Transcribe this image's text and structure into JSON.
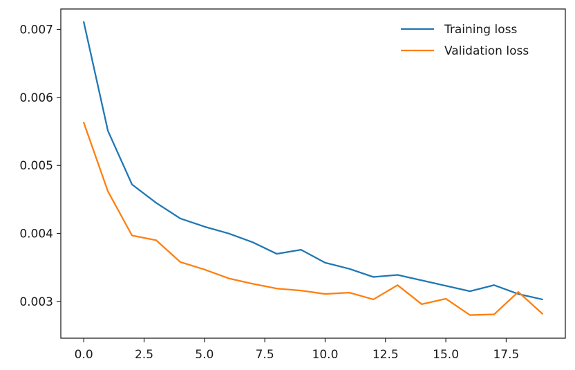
{
  "chart_data": {
    "type": "line",
    "title": "",
    "xlabel": "",
    "ylabel": "",
    "xlim": [
      -0.95,
      19.95
    ],
    "ylim": [
      0.00246,
      0.0073
    ],
    "x_ticks": [
      0.0,
      2.5,
      5.0,
      7.5,
      10.0,
      12.5,
      15.0,
      17.5
    ],
    "x_tick_labels": [
      "0.0",
      "2.5",
      "5.0",
      "7.5",
      "10.0",
      "12.5",
      "15.0",
      "17.5"
    ],
    "y_ticks": [
      0.003,
      0.004,
      0.005,
      0.006,
      0.007
    ],
    "y_tick_labels": [
      "0.003",
      "0.004",
      "0.005",
      "0.006",
      "0.007"
    ],
    "grid": false,
    "legend_position": "top-right",
    "x": [
      0,
      1,
      2,
      3,
      4,
      5,
      6,
      7,
      8,
      9,
      10,
      11,
      12,
      13,
      14,
      15,
      16,
      17,
      18,
      19
    ],
    "series": [
      {
        "name": "Training loss",
        "color": "#1f77b4",
        "values": [
          0.00711,
          0.00551,
          0.00472,
          0.00445,
          0.00422,
          0.0041,
          0.004,
          0.00387,
          0.0037,
          0.00376,
          0.00357,
          0.00348,
          0.00336,
          0.00339,
          0.00331,
          0.00323,
          0.00315,
          0.00324,
          0.00311,
          0.00303
        ]
      },
      {
        "name": "Validation loss",
        "color": "#ff7f0e",
        "values": [
          0.00563,
          0.00462,
          0.00397,
          0.0039,
          0.00358,
          0.00347,
          0.00334,
          0.00326,
          0.00319,
          0.00316,
          0.00311,
          0.00313,
          0.00303,
          0.00324,
          0.00296,
          0.00304,
          0.0028,
          0.00281,
          0.00314,
          0.00282
        ]
      }
    ]
  }
}
